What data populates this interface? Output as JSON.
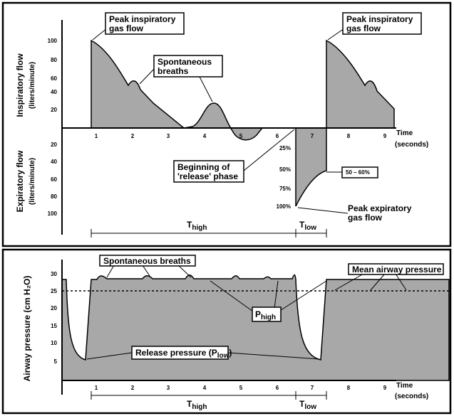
{
  "top": {
    "annotations": {
      "peak_insp_left": [
        "Peak inspiratory",
        "gas flow"
      ],
      "spont": [
        "Spontaneous",
        "breaths"
      ],
      "release": [
        "Beginning of",
        "'release' phase"
      ],
      "range": "50 – 60%",
      "peak_exp": [
        "Peak expiratory",
        "gas flow"
      ],
      "peak_insp_right": [
        "Peak inspiratory",
        "gas flow"
      ]
    },
    "y_label_insp": [
      "Inspiratory flow",
      "(liters/minute)"
    ],
    "y_label_exp": [
      "Expiratory flow",
      "(liters/minute)"
    ],
    "insp_ticks": [
      "100",
      "80",
      "60",
      "40",
      "20"
    ],
    "exp_ticks": [
      "20",
      "40",
      "60",
      "80",
      "100"
    ],
    "percent_ticks": [
      "25%",
      "50%",
      "75%",
      "100%"
    ],
    "x_ticks": [
      "1",
      "2",
      "3",
      "4",
      "5",
      "6",
      "7",
      "8",
      "9"
    ],
    "x_label": [
      "Time",
      "(seconds)"
    ],
    "t_high": {
      "main": "T",
      "sub": "high"
    },
    "t_low": {
      "main": "T",
      "sub": "low"
    }
  },
  "bottom": {
    "annotations": {
      "spont": "Spontaneous breaths",
      "mean": "Mean airway pressure",
      "p_high": {
        "main": "P",
        "sub": "high"
      },
      "release": {
        "main": "Release pressure (P",
        "sub": "low",
        "end": ")"
      }
    },
    "y_label": "Airway pressure (cm H₂O)",
    "y_ticks": [
      "30",
      "25",
      "20",
      "15",
      "10",
      "5"
    ],
    "x_ticks": [
      "1",
      "2",
      "3",
      "4",
      "5",
      "6",
      "7",
      "8",
      "9"
    ],
    "x_label": [
      "Time",
      "(seconds)"
    ],
    "t_high": {
      "main": "T",
      "sub": "high"
    },
    "t_low": {
      "main": "T",
      "sub": "low"
    }
  }
}
